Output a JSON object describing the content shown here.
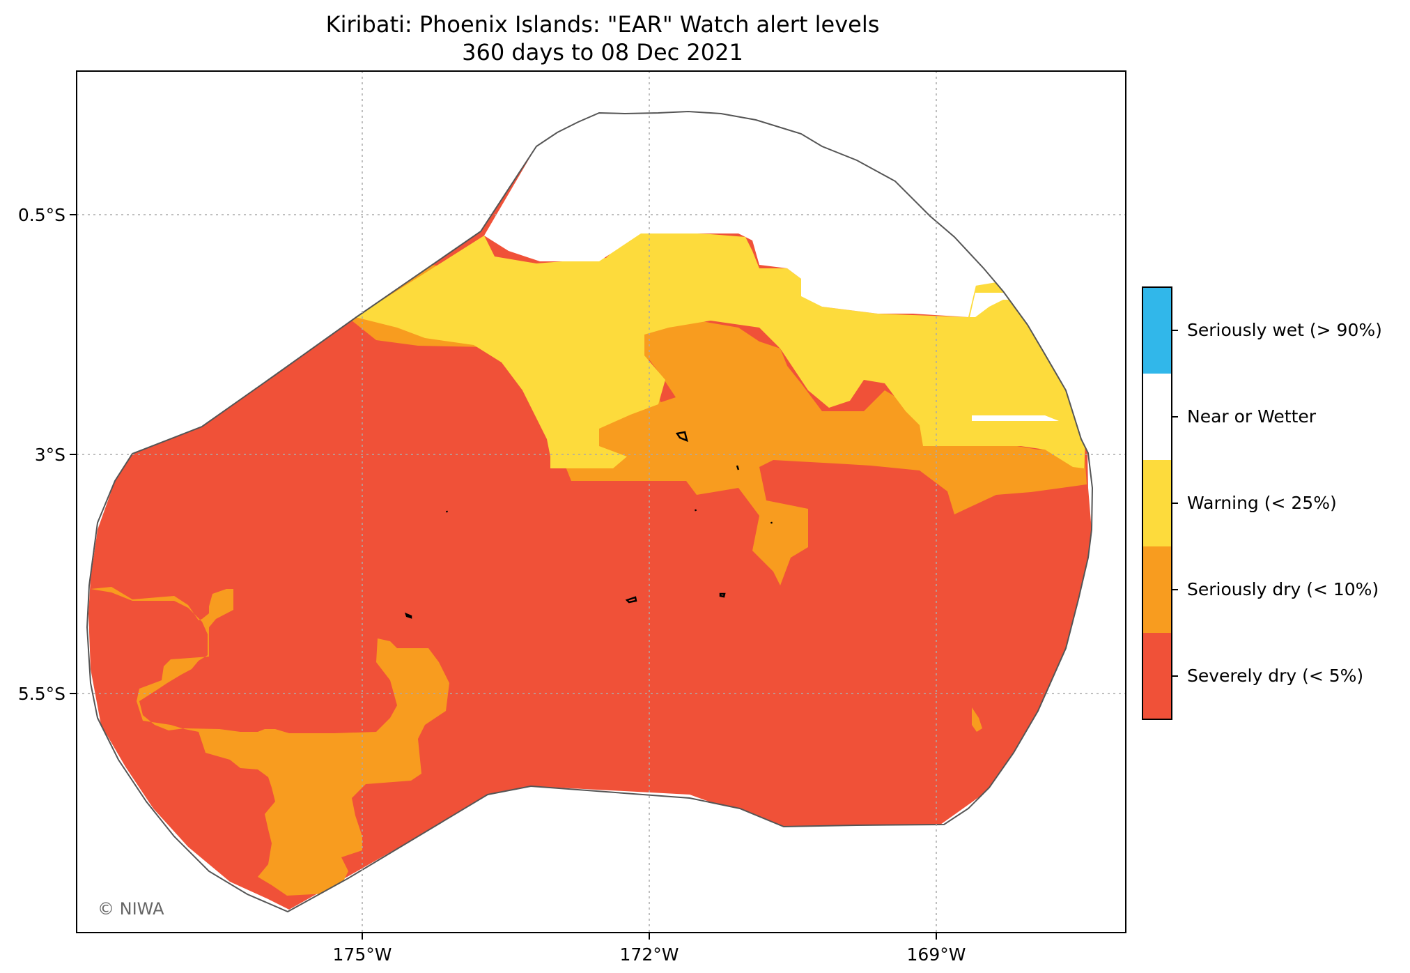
{
  "title": "Kiribati: Phoenix Islands: \"EAR\" Watch alert levels",
  "subtitle": "360 days to 08 Dec 2021",
  "axes": {
    "lon_ticks": [
      "175°W",
      "172°W",
      "169°W"
    ],
    "lat_ticks": [
      "0.5°S",
      "3°S",
      "5.5°S"
    ]
  },
  "legend": [
    {
      "label": "Seriously wet (> 90%)",
      "color": "#31b7ea"
    },
    {
      "label": "Near or Wetter",
      "color": "#ffffff"
    },
    {
      "label": "Warning (< 25%)",
      "color": "#fddb3c"
    },
    {
      "label": "Seriously dry (< 10%)",
      "color": "#f89c1f"
    },
    {
      "label": "Severely dry (< 5%)",
      "color": "#f05138"
    }
  ],
  "colors": {
    "severely_dry": "#f05138",
    "seriously_dry": "#f89c1f",
    "warning": "#fddb3c",
    "near_or_wetter": "#ffffff",
    "boundary": "#555555",
    "island": "#000000"
  },
  "copyright": "© NIWA"
}
